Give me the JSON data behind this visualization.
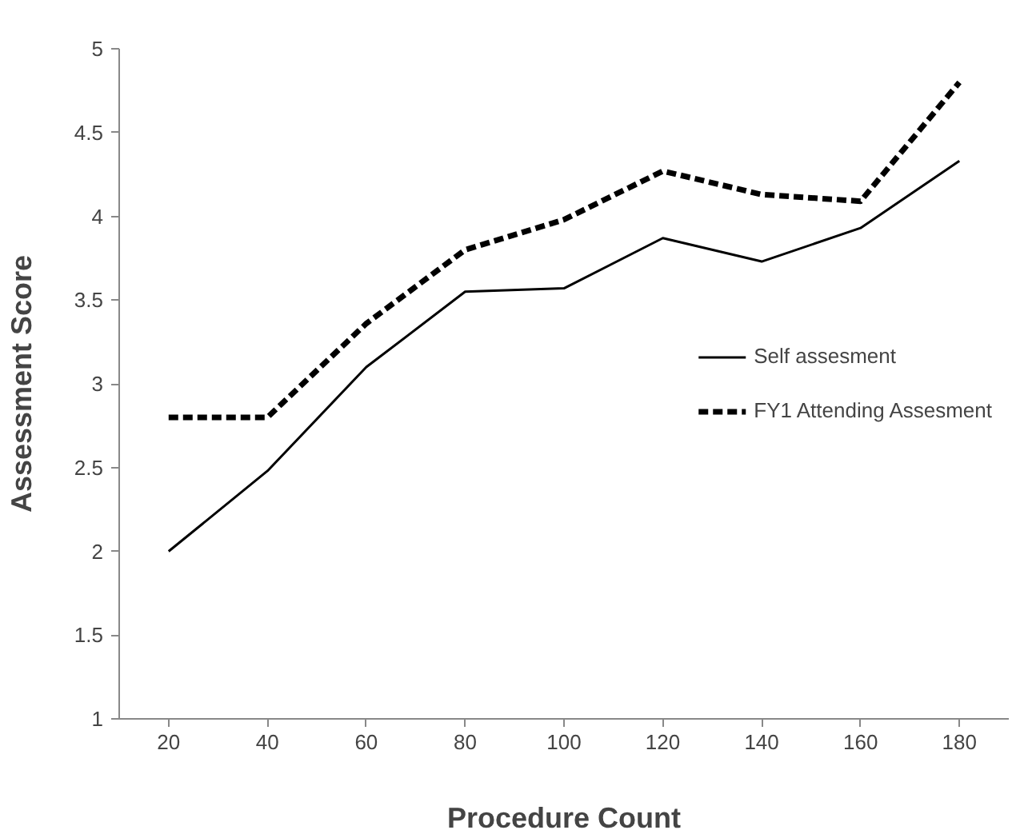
{
  "chart_data": {
    "type": "line",
    "xlabel": "Procedure Count",
    "ylabel": "Assessment Score",
    "x": [
      20,
      40,
      60,
      80,
      100,
      120,
      140,
      160,
      180
    ],
    "xlim": [
      10,
      190
    ],
    "xticks": [
      20,
      40,
      60,
      80,
      100,
      120,
      140,
      160,
      180
    ],
    "ylim": [
      1,
      5
    ],
    "yticks": [
      1,
      1.5,
      2,
      2.5,
      3,
      3.5,
      4,
      4.5,
      5
    ],
    "series": [
      {
        "name": "Self assesment",
        "color": "#000000",
        "line_style": "solid",
        "values": [
          2.0,
          2.48,
          3.1,
          3.55,
          3.57,
          3.87,
          3.73,
          3.93,
          4.33
        ]
      },
      {
        "name": "FY1 Attending Assesment",
        "color": "#000000",
        "line_style": "dashed",
        "values": [
          2.8,
          2.8,
          3.36,
          3.8,
          3.98,
          4.27,
          4.13,
          4.09,
          4.8
        ]
      }
    ],
    "grid": false,
    "legend": "right",
    "marker": "none"
  }
}
